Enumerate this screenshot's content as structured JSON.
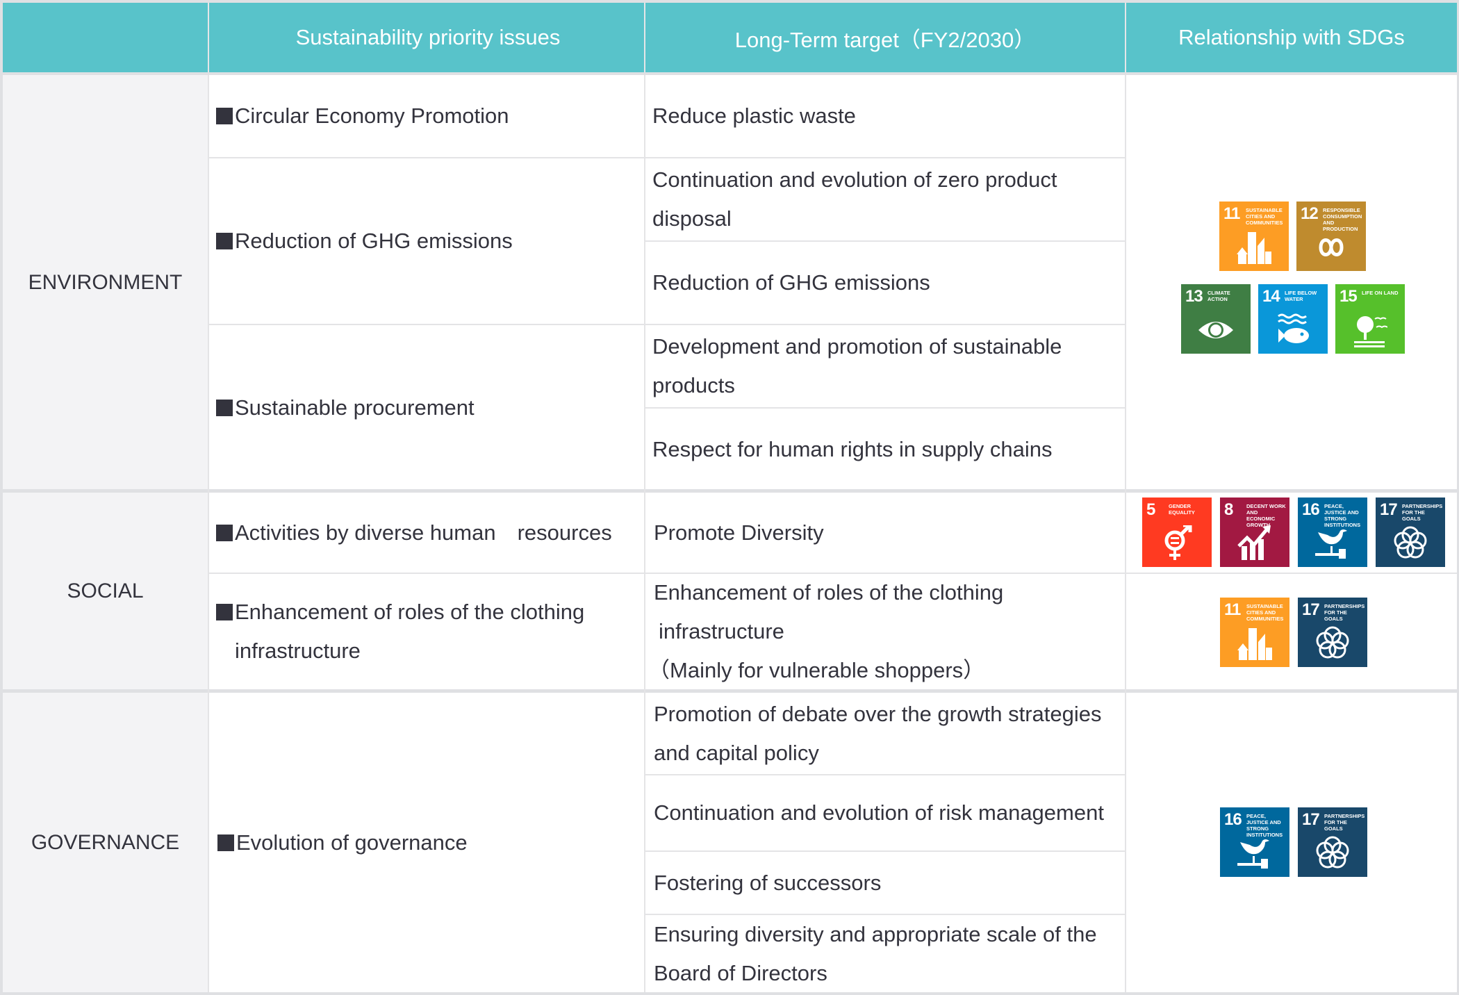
{
  "header": {
    "col1": "",
    "col2": "Sustainability priority issues",
    "col3": "Long-Term target（FY2/2030）",
    "col4": "Relationship with SDGs"
  },
  "colors": {
    "header_bg": "#58c3ca",
    "category_bg": "#f3f3f5",
    "text": "#33333d"
  },
  "sections": {
    "environment": {
      "category": "ENVIRONMENT",
      "issues": [
        "Circular Economy Promotion",
        "Reduction of GHG emissions",
        "Sustainable procurement"
      ],
      "targets": [
        "Reduce plastic waste",
        "Continuation and evolution of zero product disposal",
        "Reduction of GHG emissions",
        "Development and promotion of sustainable products",
        "Respect for human rights in supply chains"
      ],
      "sdgs": [
        {
          "num": "11",
          "label": "Sustainable cities and communities",
          "color": "#fd9d24",
          "icon": "city-icon"
        },
        {
          "num": "12",
          "label": "Responsible consumption and production",
          "color": "#bf8b2e",
          "icon": "infinity-icon"
        },
        {
          "num": "13",
          "label": "Climate action",
          "color": "#3f7e44",
          "icon": "eye-globe-icon"
        },
        {
          "num": "14",
          "label": "Life below water",
          "color": "#0a97d9",
          "icon": "fish-icon"
        },
        {
          "num": "15",
          "label": "Life on land",
          "color": "#56c02b",
          "icon": "tree-icon"
        }
      ]
    },
    "social": {
      "category": "SOCIAL",
      "issues": [
        "Activities by diverse human　resources",
        "Enhancement of roles of the clothing infrastructure"
      ],
      "targets": [
        "Promote Diversity",
        "Enhancement of roles of the clothing",
        "infrastructure",
        "（Mainly for vulnerable shoppers）"
      ],
      "sdgs_row1": [
        {
          "num": "5",
          "label": "Gender equality",
          "color": "#ff3a21",
          "icon": "gender-icon"
        },
        {
          "num": "8",
          "label": "Decent work and economic growth",
          "color": "#a21942",
          "icon": "growth-chart-icon"
        },
        {
          "num": "16",
          "label": "Peace, justice and strong institutions",
          "color": "#00689d",
          "icon": "dove-gavel-icon"
        },
        {
          "num": "17",
          "label": "Partnerships for the goals",
          "color": "#19486a",
          "icon": "rings-icon"
        }
      ],
      "sdgs_row2": [
        {
          "num": "11",
          "label": "Sustainable cities and communities",
          "color": "#fd9d24",
          "icon": "city-icon"
        },
        {
          "num": "17",
          "label": "Partnerships for the goals",
          "color": "#19486a",
          "icon": "rings-icon"
        }
      ]
    },
    "governance": {
      "category": "GOVERNANCE",
      "issues": [
        "Evolution of governance"
      ],
      "targets": [
        "Promotion of debate over the growth strategies and capital policy",
        "Continuation and evolution of risk management",
        "Fostering of successors",
        "Ensuring diversity and appropriate scale of the Board of Directors"
      ],
      "sdgs": [
        {
          "num": "16",
          "label": "Peace, justice and strong institutions",
          "color": "#00689d",
          "icon": "dove-gavel-icon"
        },
        {
          "num": "17",
          "label": "Partnerships for the goals",
          "color": "#19486a",
          "icon": "rings-icon"
        }
      ]
    }
  }
}
